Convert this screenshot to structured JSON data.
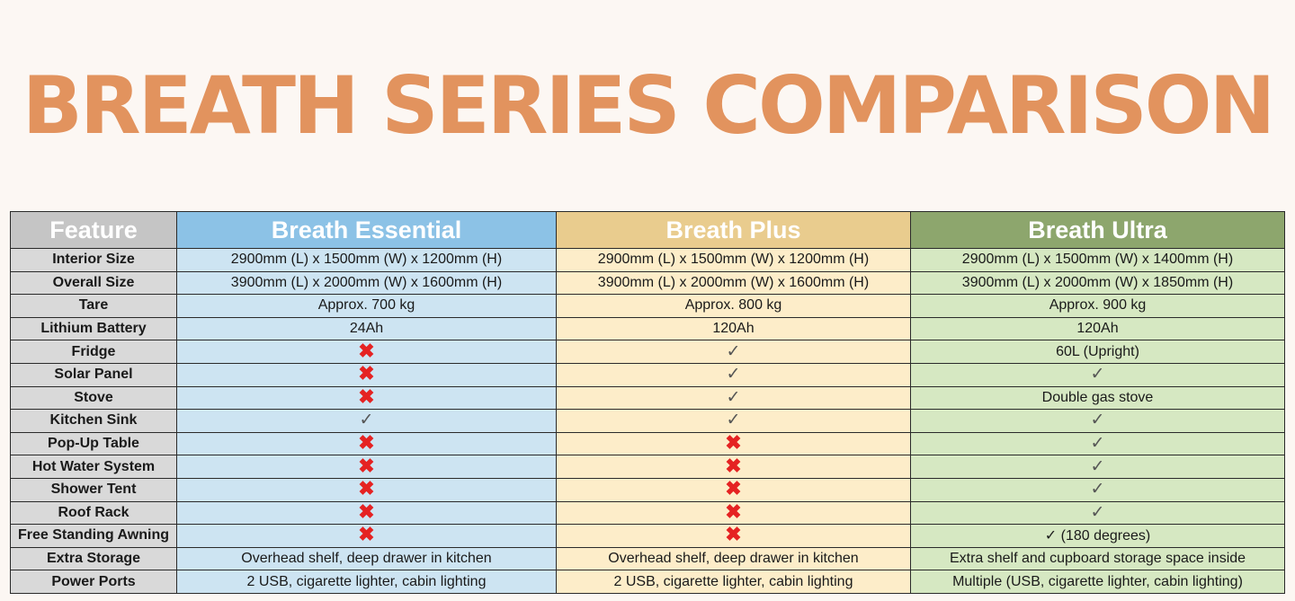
{
  "title": "BREATH SERIES COMPARISON",
  "headers": [
    "Feature",
    "Breath Essential",
    "Breath Plus",
    "Breath Ultra"
  ],
  "rows": [
    {
      "feature": "Interior Size",
      "essential": "2900mm (L) x 1500mm (W) x 1200mm (H)",
      "plus": "2900mm (L) x 1500mm (W) x 1200mm (H)",
      "ultra": "2900mm (L) x 1500mm (W) x 1400mm (H)"
    },
    {
      "feature": "Overall Size",
      "essential": "3900mm (L) x 2000mm (W) x 1600mm (H)",
      "plus": "3900mm (L) x 2000mm (W) x 1600mm (H)",
      "ultra": "3900mm (L) x 2000mm (W) x 1850mm (H)"
    },
    {
      "feature": "Tare",
      "essential": "Approx. 700 kg",
      "plus": "Approx. 800 kg",
      "ultra": "Approx. 900 kg"
    },
    {
      "feature": "Lithium Battery",
      "essential": "24Ah",
      "plus": "120Ah",
      "ultra": "120Ah"
    },
    {
      "feature": "Fridge",
      "essential": "✖",
      "plus": "✓",
      "ultra": "60L (Upright)"
    },
    {
      "feature": "Solar Panel",
      "essential": "✖",
      "plus": "✓",
      "ultra": "✓"
    },
    {
      "feature": "Stove",
      "essential": "✖",
      "plus": "✓",
      "ultra": "Double gas stove"
    },
    {
      "feature": "Kitchen Sink",
      "essential": "✓",
      "plus": "✓",
      "ultra": "✓"
    },
    {
      "feature": "Pop-Up Table",
      "essential": "✖",
      "plus": "✖",
      "ultra": "✓"
    },
    {
      "feature": "Hot Water System",
      "essential": "✖",
      "plus": "✖",
      "ultra": "✓"
    },
    {
      "feature": "Shower Tent",
      "essential": "✖",
      "plus": "✖",
      "ultra": "✓"
    },
    {
      "feature": "Roof Rack",
      "essential": "✖",
      "plus": "✖",
      "ultra": "✓"
    },
    {
      "feature": "Free Standing Awning",
      "essential": "✖",
      "plus": "✖",
      "ultra": "✓ (180 degrees)"
    },
    {
      "feature": "Extra Storage",
      "essential": "Overhead shelf, deep drawer in kitchen",
      "plus": "Overhead shelf, deep drawer in kitchen",
      "ultra": "Extra shelf and cupboard storage space inside"
    },
    {
      "feature": "Power Ports",
      "essential": "2 USB, cigarette lighter, cabin lighting",
      "plus": "2 USB, cigarette lighter, cabin lighting",
      "ultra": "Multiple (USB, cigarette lighter, cabin lighting)"
    }
  ],
  "colors": {
    "title": "#e2935e",
    "cross": "#e52222",
    "check": "#555555",
    "feature_header": "#c5c5c5",
    "essential_header": "#8cc2e6",
    "plus_header": "#e9cc8e",
    "ultra_header": "#8da66d",
    "feature_cell": "#d9d9d9",
    "essential_cell": "#cde4f2",
    "plus_cell": "#fdedc9",
    "ultra_cell": "#d6e8c2"
  }
}
